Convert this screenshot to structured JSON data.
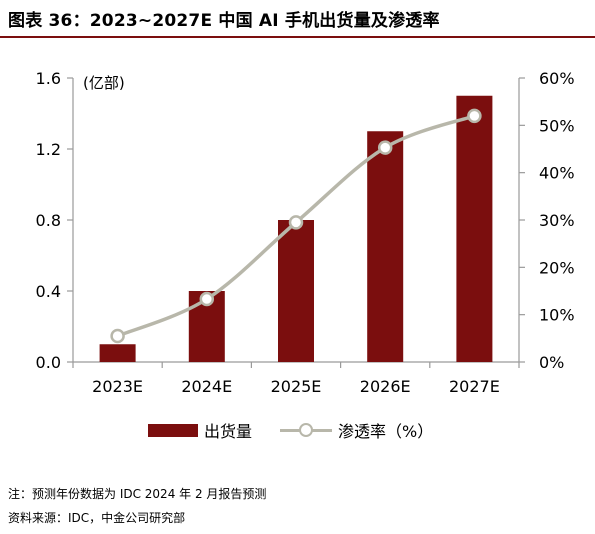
{
  "title": "图表 36：2023~2027E 中国 AI 手机出货量及渗透率",
  "chart_data": {
    "type": "bar",
    "categories": [
      "2023E",
      "2024E",
      "2025E",
      "2026E",
      "2027E"
    ],
    "series": [
      {
        "name": "出货量",
        "type": "bar",
        "axis": "left",
        "values": [
          0.1,
          0.4,
          0.8,
          1.3,
          1.5
        ],
        "color": "#7b0e0e"
      },
      {
        "name": "渗透率（%）",
        "type": "line",
        "axis": "right",
        "values": [
          5.5,
          13.3,
          29.5,
          45.3,
          52.0
        ],
        "color": "#b8b7aa"
      }
    ],
    "y_left": {
      "label": "(亿部)",
      "min": 0,
      "max": 1.6,
      "ticks": [
        "0.0",
        "0.4",
        "0.8",
        "1.2",
        "1.6"
      ]
    },
    "y_right": {
      "min": 0,
      "max": 60,
      "ticks": [
        "0%",
        "10%",
        "20%",
        "30%",
        "40%",
        "50%",
        "60%"
      ]
    },
    "grid": false,
    "legend_position": "bottom"
  },
  "notes": [
    "注：预测年份数据为 IDC 2024 年 2 月报告预测",
    "资料来源：IDC，中金公司研究部"
  ]
}
